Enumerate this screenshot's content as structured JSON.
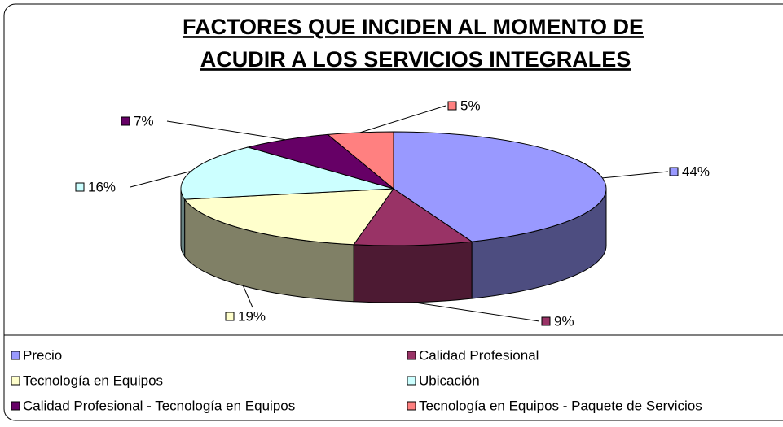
{
  "chart_data": {
    "type": "pie3d",
    "title": [
      "FACTORES QUE INCIDEN AL MOMENTO DE",
      "ACUDIR A LOS SERVICIOS INTEGRALES"
    ],
    "categories": [
      "Precio",
      "Calidad Profesional",
      "Tecnología en Equipos",
      "Ubicación",
      "Calidad Profesional - Tecnología en Equipos",
      "Tecnología en Equipos - Paquete de Servicios"
    ],
    "values": [
      44,
      9,
      19,
      16,
      7,
      5
    ],
    "value_labels": [
      "44%",
      "9%",
      "19%",
      "16%",
      "7%",
      "5%"
    ],
    "colors": [
      "#9999ff",
      "#993366",
      "#ffffcc",
      "#ccffff",
      "#660066",
      "#ff8080"
    ],
    "legend": "bottom"
  }
}
